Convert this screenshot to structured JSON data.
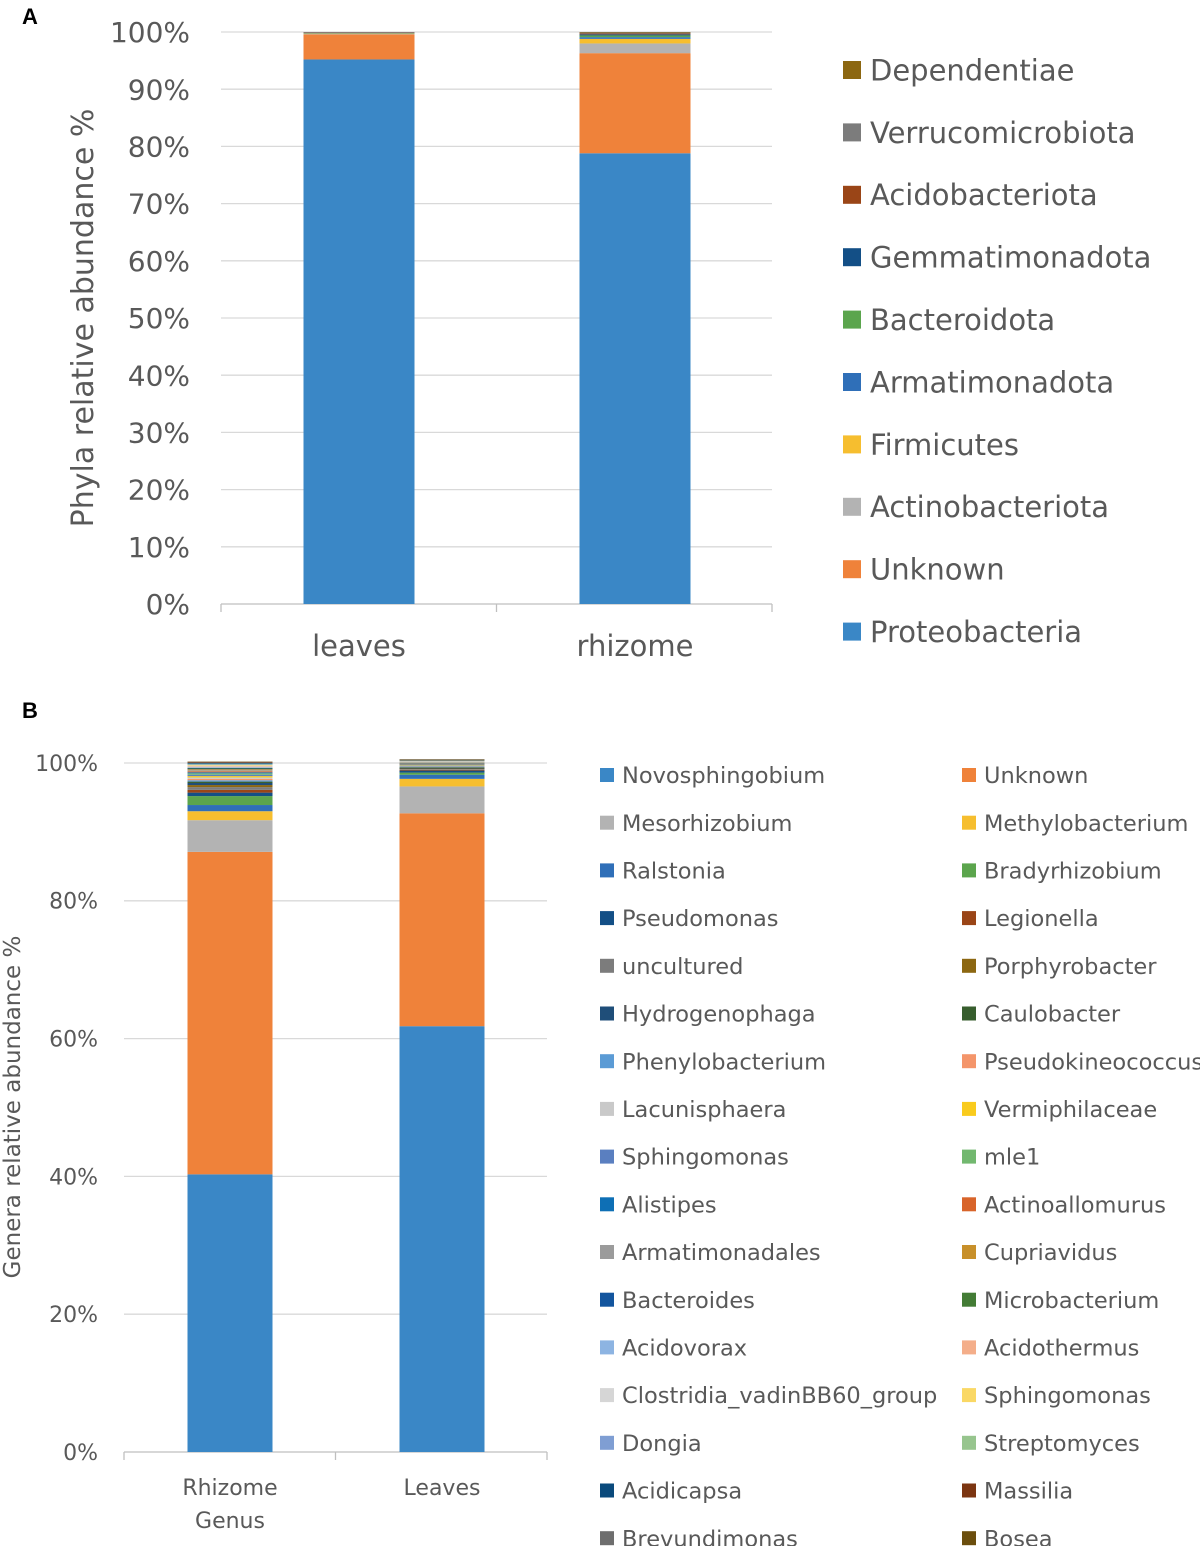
{
  "chart_data": [
    {
      "panel": "A",
      "type": "bar",
      "stacked": true,
      "categories": [
        "leaves",
        "rhizome"
      ],
      "ylabel": "Phyla relative abundance %",
      "xlabel": "",
      "ylim": [
        0,
        100
      ],
      "yticks": [
        "0%",
        "10%",
        "20%",
        "30%",
        "40%",
        "50%",
        "60%",
        "70%",
        "80%",
        "90%",
        "100%"
      ],
      "legend_position": "right",
      "series": [
        {
          "name": "Proteobacteria",
          "color": "#3A87C6",
          "values": [
            95.2,
            78.8
          ]
        },
        {
          "name": "Unknown",
          "color": "#EF823A",
          "values": [
            4.4,
            17.5
          ]
        },
        {
          "name": "Actinobacteriota",
          "color": "#B3B3B3",
          "values": [
            0.1,
            1.7
          ]
        },
        {
          "name": "Firmicutes",
          "color": "#F6BE2F",
          "values": [
            0.05,
            0.8
          ]
        },
        {
          "name": "Armatimonadota",
          "color": "#2F6FB8",
          "values": [
            0.05,
            0.3
          ]
        },
        {
          "name": "Bacteroidota",
          "color": "#5BA54D",
          "values": [
            0.05,
            0.3
          ]
        },
        {
          "name": "Gemmatimonadota",
          "color": "#134F86",
          "values": [
            0.05,
            0.2
          ]
        },
        {
          "name": "Acidobacteriota",
          "color": "#9A4517",
          "values": [
            0.05,
            0.15
          ]
        },
        {
          "name": "Verrucomicrobiota",
          "color": "#7C7C7C",
          "values": [
            0.0,
            0.15
          ]
        },
        {
          "name": "Dependentiae",
          "color": "#8C6711",
          "values": [
            0.0,
            0.1
          ]
        }
      ]
    },
    {
      "panel": "B",
      "type": "bar",
      "stacked": true,
      "categories": [
        "Rhizome\nGenus",
        "Leaves"
      ],
      "ylabel": "Genera relative abundance %",
      "xlabel": "",
      "ylim": [
        0,
        100
      ],
      "yticks": [
        "0%",
        "20%",
        "40%",
        "60%",
        "80%",
        "100%"
      ],
      "legend_position": "right",
      "series": [
        {
          "name": "Novosphingobium",
          "color": "#3A87C6",
          "values": [
            40.3,
            61.8
          ]
        },
        {
          "name": "Unknown",
          "color": "#EF823A",
          "values": [
            46.8,
            30.9
          ]
        },
        {
          "name": "Mesorhizobium",
          "color": "#B3B3B3",
          "values": [
            4.6,
            3.9
          ]
        },
        {
          "name": "Methylobacterium",
          "color": "#F6BE2F",
          "values": [
            1.3,
            1.1
          ]
        },
        {
          "name": "Ralstonia",
          "color": "#2F6FB8",
          "values": [
            0.9,
            0.6
          ]
        },
        {
          "name": "Bradyrhizobium",
          "color": "#5BA54D",
          "values": [
            1.3,
            0.3
          ]
        },
        {
          "name": "Pseudomonas",
          "color": "#134F86",
          "values": [
            0.5,
            0.3
          ]
        },
        {
          "name": "Legionella",
          "color": "#9A4517",
          "values": [
            0.4,
            0.1
          ]
        },
        {
          "name": "uncultured",
          "color": "#7C7C7C",
          "values": [
            0.4,
            0.1
          ]
        },
        {
          "name": "Porphyrobacter",
          "color": "#8C6711",
          "values": [
            0.3,
            0.1
          ]
        },
        {
          "name": "Hydrogenophaga",
          "color": "#1F4E79",
          "values": [
            0.3,
            0.1
          ]
        },
        {
          "name": "Caulobacter",
          "color": "#375E2E",
          "values": [
            0.2,
            0.1
          ]
        },
        {
          "name": "Phenylobacterium",
          "color": "#5B9BD5",
          "values": [
            0.2,
            0.1
          ]
        },
        {
          "name": "Pseudokineococcus",
          "color": "#F4956A",
          "values": [
            0.2,
            0.05
          ]
        },
        {
          "name": "Lacunisphaera",
          "color": "#C9C9C9",
          "values": [
            0.2,
            0.05
          ]
        },
        {
          "name": "Vermiphilaceae",
          "color": "#F9CB1D",
          "values": [
            0.2,
            0.05
          ]
        },
        {
          "name": "Sphingomonas",
          "color": "#5A7FC0",
          "values": [
            0.2,
            0.05
          ]
        },
        {
          "name": "mle1",
          "color": "#72B86F",
          "values": [
            0.2,
            0.05
          ]
        },
        {
          "name": "Alistipes",
          "color": "#0E6FB5",
          "values": [
            0.15,
            0.05
          ]
        },
        {
          "name": "Actinoallomurus",
          "color": "#D8642A",
          "values": [
            0.15,
            0.05
          ]
        },
        {
          "name": "Armatimonadales",
          "color": "#9B9B9B",
          "values": [
            0.15,
            0.05
          ]
        },
        {
          "name": "Cupriavidus",
          "color": "#C8902A",
          "values": [
            0.15,
            0.05
          ]
        },
        {
          "name": "Bacteroides",
          "color": "#13559E",
          "values": [
            0.1,
            0.05
          ]
        },
        {
          "name": "Microbacterium",
          "color": "#437C35",
          "values": [
            0.1,
            0.05
          ]
        },
        {
          "name": "Acidovorax",
          "color": "#8DB4E2",
          "values": [
            0.1,
            0.05
          ]
        },
        {
          "name": "Acidothermus",
          "color": "#F4AE8A",
          "values": [
            0.1,
            0.05
          ]
        },
        {
          "name": "Clostridia_vadinBB60_group",
          "color": "#D6D6D6",
          "values": [
            0.1,
            0.05
          ]
        },
        {
          "name": "Sphingomonas",
          "color": "#FAD865",
          "values": [
            0.1,
            0.05
          ]
        },
        {
          "name": "Dongia",
          "color": "#7F9ED3",
          "values": [
            0.1,
            0.05
          ]
        },
        {
          "name": "Streptomyces",
          "color": "#97C58E",
          "values": [
            0.1,
            0.05
          ]
        },
        {
          "name": "Acidicapsa",
          "color": "#0A4A7C",
          "values": [
            0.1,
            0.05
          ]
        },
        {
          "name": "Massilia",
          "color": "#7C3511",
          "values": [
            0.1,
            0.05
          ]
        },
        {
          "name": "Brevundimonas",
          "color": "#6E6E6E",
          "values": [
            0.05,
            0.05
          ]
        },
        {
          "name": "Bosea",
          "color": "#6B4E0D",
          "values": [
            0.05,
            0.05
          ]
        }
      ]
    }
  ]
}
